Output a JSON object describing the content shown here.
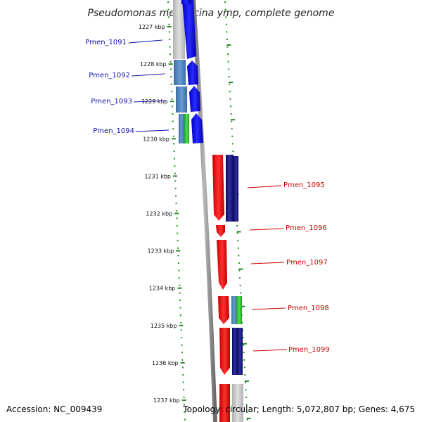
{
  "title": "Pseudomonas mendocina ymp, complete genome",
  "footer": {
    "accession": "Accession: NC_009439",
    "topology": "Topology: circular; Length: 5,072,807 bp; Genes: 4,675"
  },
  "ticks": [
    "1227 kbp",
    "1228 kbp",
    "1229 kbp",
    "1230 kbp",
    "1231 kbp",
    "1232 kbp",
    "1233 kbp",
    "1234 kbp",
    "1235 kbp",
    "1236 kbp",
    "1237 kbp"
  ],
  "genes_left": [
    "Pmen_1091",
    "Pmen_1092",
    "Pmen_1093",
    "Pmen_1094"
  ],
  "genes_right": [
    "Pmen_1095",
    "Pmen_1096",
    "Pmen_1097",
    "Pmen_1098",
    "Pmen_1099"
  ],
  "colors": {
    "backbone": "#8a8a8a",
    "dot_green": "#2a8a2a",
    "left_gene": "#1010e0",
    "right_gene": "#ee1111",
    "cog_blue": "#4a80b8",
    "cog_navy": "#1a1a80",
    "cog_green": "#30c030",
    "cog_grey": "#c8c8c8",
    "label_blue": "#1010b0",
    "label_red": "#cc0000"
  }
}
